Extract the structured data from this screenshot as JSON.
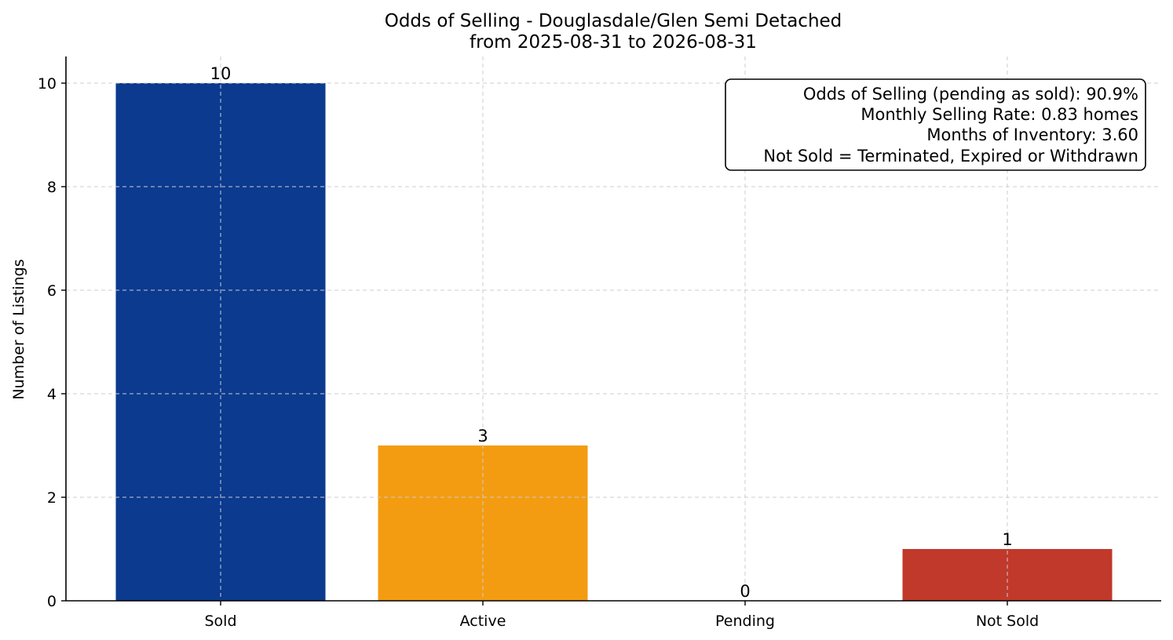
{
  "chart_data": {
    "type": "bar",
    "title": "Odds of Selling - Douglasdale/Glen Semi Detached",
    "subtitle": "from 2025-08-31 to 2026-08-31",
    "xlabel": "",
    "ylabel": "Number of Listings",
    "categories": [
      "Sold",
      "Active",
      "Pending",
      "Not Sold"
    ],
    "values": [
      10,
      3,
      0,
      1
    ],
    "data_labels": [
      "10",
      "3",
      "0",
      "1"
    ],
    "colors": [
      "#0b3a8f",
      "#f39c12",
      "#7f8c8d",
      "#c0392b"
    ],
    "ylim": [
      0,
      10.5
    ],
    "yticks": [
      0,
      2,
      4,
      6,
      8,
      10
    ],
    "ytick_labels": [
      "0",
      "2",
      "4",
      "6",
      "8",
      "10"
    ],
    "grid": true,
    "info_box": {
      "placement": "top-right",
      "lines": [
        "Odds of Selling (pending as sold): 90.9%",
        "Monthly Selling Rate: 0.83 homes",
        "Months of Inventory: 3.60",
        "Not Sold = Terminated, Expired or Withdrawn"
      ]
    }
  }
}
